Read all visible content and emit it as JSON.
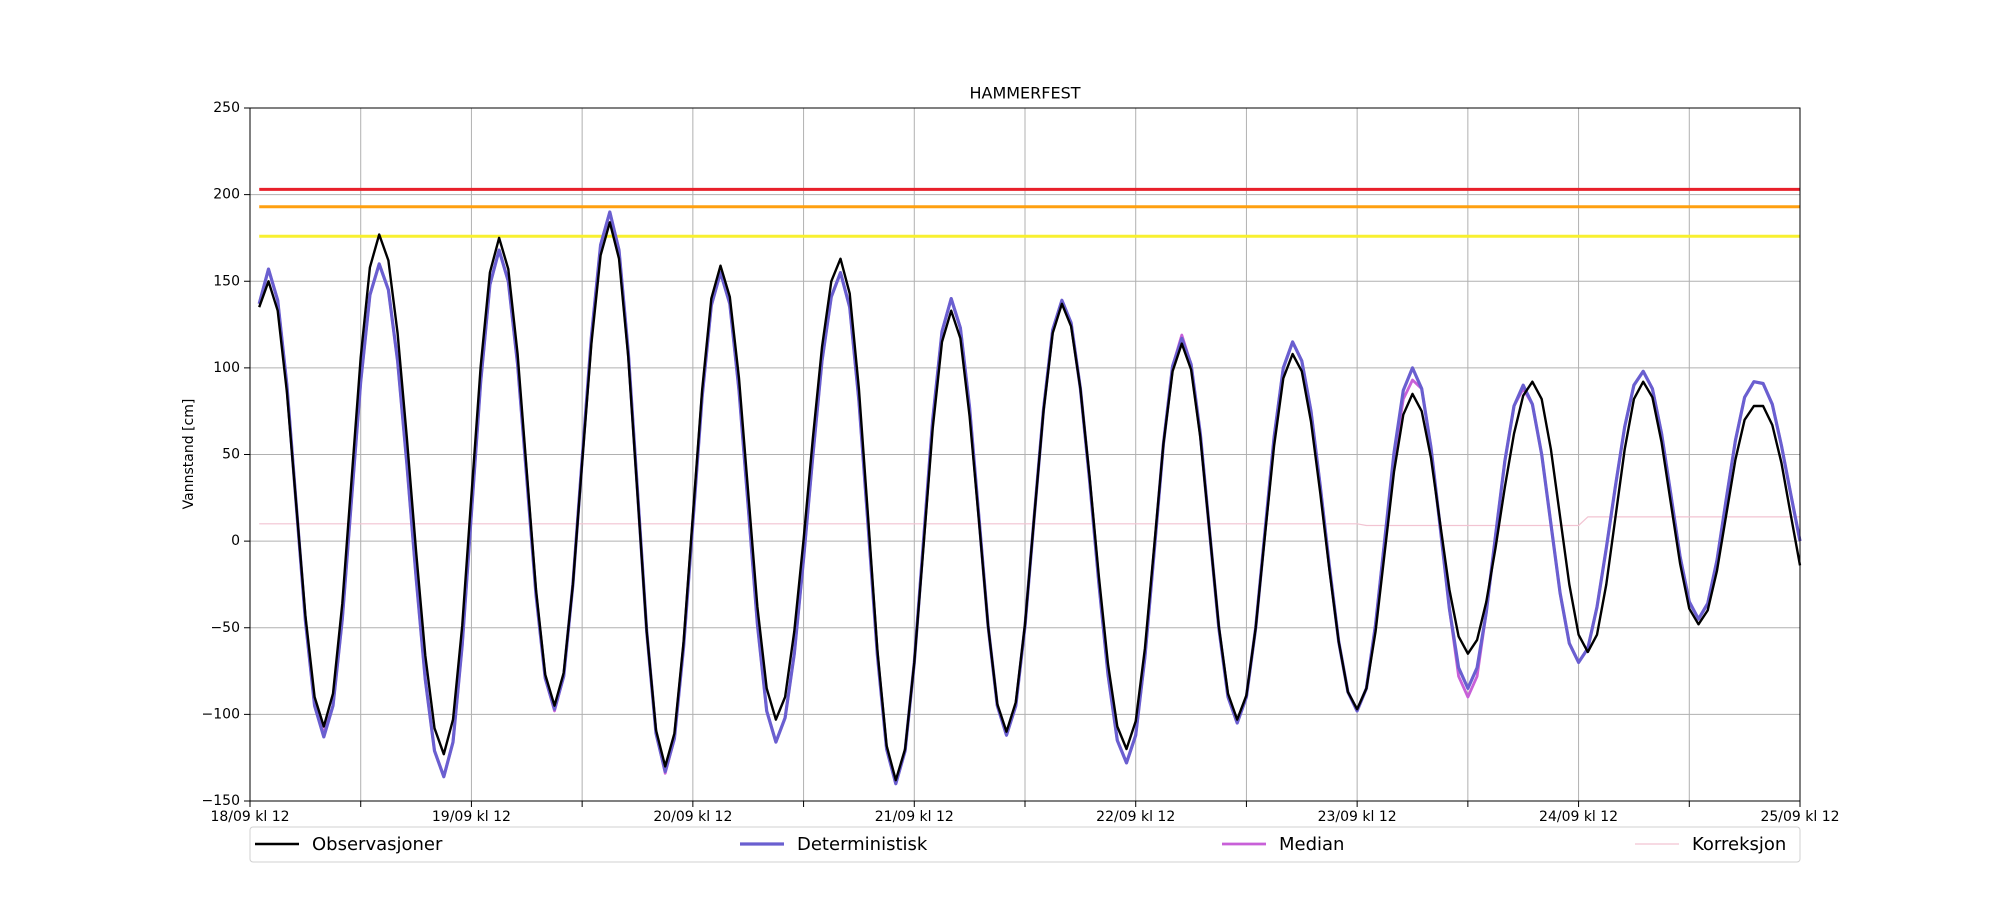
{
  "chart_data": {
    "type": "line",
    "title": "HAMMERFEST",
    "y_label": "Vannstand [cm]",
    "x": [
      1,
      2,
      3,
      4,
      5,
      6,
      7,
      8,
      9,
      10,
      11,
      12,
      13,
      14,
      15,
      16,
      17,
      18,
      19,
      20,
      21,
      22,
      23,
      24,
      25,
      26,
      27,
      28,
      29,
      30,
      31,
      32,
      33,
      34,
      35,
      36,
      37,
      38,
      39,
      40,
      41,
      42,
      43,
      44,
      45,
      46,
      47,
      48,
      49,
      50,
      51,
      52,
      53,
      54,
      55,
      56,
      57,
      58,
      59,
      60,
      61,
      62,
      63,
      64,
      65,
      66,
      67,
      68,
      69,
      70,
      71,
      72,
      73,
      74,
      75,
      76,
      77,
      78,
      79,
      80,
      81,
      82,
      83,
      84,
      85,
      86,
      87,
      88,
      89,
      90,
      91,
      92,
      93,
      94,
      95,
      96,
      97,
      98,
      99,
      100,
      101,
      102,
      103,
      104,
      105,
      106,
      107,
      108,
      109,
      110,
      111,
      112,
      113,
      114,
      115,
      116,
      117,
      118,
      119,
      120,
      121,
      122,
      123,
      124,
      125,
      126,
      127,
      128,
      129,
      130,
      131,
      132,
      133,
      134,
      135,
      136,
      137,
      138,
      139,
      140,
      141,
      142,
      143,
      144,
      145,
      146,
      147,
      148,
      149,
      150,
      151,
      152,
      153,
      154,
      155,
      156,
      157,
      158,
      159,
      160,
      161,
      162,
      163,
      164,
      165,
      166,
      167,
      168
    ],
    "series": [
      {
        "name": "Observasjoner",
        "color": "#000000",
        "values": [
          135,
          150,
          133,
          86,
          22,
          -43,
          -90,
          -107,
          -88,
          -36,
          35,
          106,
          158,
          177,
          162,
          120,
          60,
          -6,
          -66,
          -108,
          -123,
          -103,
          -49,
          26,
          101,
          155,
          175,
          157,
          108,
          40,
          -28,
          -77,
          -95,
          -76,
          -25,
          45,
          114,
          165,
          184,
          163,
          106,
          27,
          -52,
          -109,
          -130,
          -111,
          -58,
          15,
          87,
          140,
          159,
          141,
          94,
          28,
          -38,
          -85,
          -103,
          -90,
          -52,
          1,
          59,
          112,
          150,
          163,
          143,
          88,
          13,
          -63,
          -118,
          -138,
          -120,
          -70,
          -3,
          65,
          115,
          133,
          117,
          72,
          12,
          -49,
          -94,
          -110,
          -93,
          -48,
          14,
          75,
          120,
          137,
          124,
          88,
          37,
          -20,
          -71,
          -107,
          -120,
          -104,
          -62,
          -3,
          56,
          98,
          114,
          99,
          60,
          6,
          -49,
          -88,
          -103,
          -89,
          -50,
          3,
          55,
          94,
          108,
          98,
          69,
          28,
          -17,
          -58,
          -87,
          -97,
          -85,
          -52,
          -6,
          40,
          73,
          85,
          75,
          48,
          10,
          -28,
          -55,
          -65,
          -57,
          -35,
          -4,
          31,
          62,
          84,
          92,
          82,
          53,
          14,
          -25,
          -54,
          -64,
          -54,
          -25,
          14,
          53,
          82,
          92,
          83,
          57,
          22,
          -13,
          -39,
          -48,
          -40,
          -17,
          15,
          47,
          70,
          78,
          78,
          67,
          45,
          15,
          -14
        ]
      },
      {
        "name": "Deterministisk",
        "color": "#6a5fd0",
        "values": [
          137,
          157,
          139,
          90,
          22,
          -46,
          -95,
          -113,
          -95,
          -45,
          24,
          92,
          142,
          160,
          145,
          104,
          45,
          -21,
          -80,
          -121,
          -136,
          -116,
          -60,
          16,
          92,
          148,
          168,
          150,
          102,
          36,
          -31,
          -79,
          -97,
          -78,
          -25,
          47,
          118,
          171,
          190,
          168,
          109,
          29,
          -52,
          -111,
          -133,
          -114,
          -61,
          11,
          83,
          136,
          155,
          137,
          87,
          20,
          -48,
          -98,
          -116,
          -102,
          -65,
          -10,
          49,
          104,
          141,
          155,
          135,
          81,
          8,
          -66,
          -120,
          -140,
          -121,
          -70,
          0,
          70,
          121,
          140,
          123,
          77,
          14,
          -49,
          -95,
          -112,
          -95,
          -49,
          14,
          76,
          122,
          139,
          126,
          88,
          35,
          -24,
          -77,
          -115,
          -128,
          -112,
          -67,
          -6,
          56,
          101,
          117,
          102,
          62,
          6,
          -50,
          -90,
          -105,
          -90,
          -50,
          5,
          60,
          100,
          115,
          104,
          75,
          32,
          -15,
          -58,
          -87,
          -98,
          -85,
          -48,
          1,
          51,
          87,
          100,
          88,
          54,
          8,
          -39,
          -73,
          -85,
          -73,
          -41,
          3,
          46,
          78,
          90,
          79,
          50,
          10,
          -30,
          -59,
          -70,
          -62,
          -38,
          -4,
          32,
          66,
          90,
          98,
          88,
          62,
          27,
          -9,
          -35,
          -45,
          -36,
          -11,
          24,
          58,
          83,
          92,
          91,
          79,
          55,
          27,
          0
        ]
      },
      {
        "name": "Median",
        "color": "#c860d8",
        "values": [
          137,
          157,
          139,
          90,
          22,
          -46,
          -95,
          -111,
          -95,
          -45,
          24,
          92,
          142,
          160,
          145,
          104,
          45,
          -21,
          -80,
          -121,
          -136,
          -116,
          -60,
          16,
          92,
          148,
          168,
          150,
          102,
          36,
          -31,
          -79,
          -98,
          -78,
          -25,
          47,
          118,
          171,
          190,
          168,
          109,
          29,
          -52,
          -110,
          -134,
          -114,
          -61,
          11,
          83,
          136,
          155,
          137,
          87,
          20,
          -48,
          -98,
          -116,
          -102,
          -65,
          -10,
          49,
          104,
          141,
          155,
          135,
          81,
          8,
          -66,
          -120,
          -140,
          -121,
          -70,
          0,
          70,
          121,
          140,
          123,
          77,
          14,
          -49,
          -95,
          -112,
          -95,
          -49,
          14,
          76,
          122,
          139,
          126,
          88,
          35,
          -24,
          -77,
          -115,
          -128,
          -112,
          -67,
          -6,
          56,
          101,
          119,
          102,
          62,
          6,
          -50,
          -90,
          -105,
          -90,
          -50,
          5,
          60,
          100,
          115,
          104,
          75,
          32,
          -15,
          -58,
          -87,
          -98,
          -85,
          -48,
          1,
          48,
          82,
          93,
          88,
          54,
          8,
          -39,
          -78,
          -90,
          -78,
          -41,
          3,
          46,
          78,
          88,
          79,
          50,
          10,
          -30,
          -59,
          -70,
          -62,
          -38,
          -4,
          32,
          66,
          90,
          98,
          88,
          62,
          27,
          -9,
          -35,
          -45,
          -36,
          -11,
          24,
          58,
          83,
          92,
          91,
          79,
          55,
          27,
          0
        ]
      },
      {
        "name": "Korreksjon",
        "color": "#f2c4d2",
        "values": [
          10,
          10,
          10,
          10,
          10,
          10,
          10,
          10,
          10,
          10,
          10,
          10,
          10,
          10,
          10,
          10,
          10,
          10,
          10,
          10,
          10,
          10,
          10,
          10,
          10,
          10,
          10,
          10,
          10,
          10,
          10,
          10,
          10,
          10,
          10,
          10,
          10,
          10,
          10,
          10,
          10,
          10,
          10,
          10,
          10,
          10,
          10,
          10,
          10,
          10,
          10,
          10,
          10,
          10,
          10,
          10,
          10,
          10,
          10,
          10,
          10,
          10,
          10,
          10,
          10,
          10,
          10,
          10,
          10,
          10,
          10,
          10,
          10,
          10,
          10,
          10,
          10,
          10,
          10,
          10,
          10,
          10,
          10,
          10,
          10,
          10,
          10,
          10,
          10,
          10,
          10,
          10,
          10,
          10,
          10,
          10,
          10,
          10,
          10,
          10,
          10,
          10,
          10,
          10,
          10,
          10,
          10,
          10,
          10,
          10,
          10,
          10,
          10,
          10,
          10,
          10,
          10,
          10,
          10,
          10,
          9,
          9,
          9,
          9,
          9,
          9,
          9,
          9,
          9,
          9,
          9,
          9,
          9,
          9,
          9,
          9,
          9,
          9,
          9,
          9,
          9,
          9,
          9,
          9,
          14,
          14,
          14,
          14,
          14,
          14,
          14,
          14,
          14,
          14,
          14,
          14,
          14,
          14,
          14,
          14,
          14,
          14,
          14,
          14,
          14,
          14,
          14,
          14
        ]
      }
    ],
    "hlines": [
      {
        "value": 203,
        "color": "#e8202a"
      },
      {
        "value": 193,
        "color": "#ffa010"
      },
      {
        "value": 176,
        "color": "#f8f030"
      }
    ],
    "xlim": [
      0,
      168
    ],
    "xticks": [
      {
        "value": 0,
        "label": "18/09 kl 12"
      },
      {
        "value": 24,
        "label": "19/09 kl 12"
      },
      {
        "value": 48,
        "label": "20/09 kl 12"
      },
      {
        "value": 72,
        "label": "21/09 kl 12"
      },
      {
        "value": 96,
        "label": "22/09 kl 12"
      },
      {
        "value": 120,
        "label": "23/09 kl 12"
      },
      {
        "value": 144,
        "label": "24/09 kl 12"
      },
      {
        "value": 168,
        "label": "25/09 kl 12"
      }
    ],
    "xticks_minor": [
      12,
      36,
      60,
      84,
      108,
      132,
      156
    ],
    "ylim": [
      -150,
      250
    ],
    "yticks": [
      {
        "value": -150,
        "label": "−150"
      },
      {
        "value": -100,
        "label": "−100"
      },
      {
        "value": -50,
        "label": "−50"
      },
      0,
      50,
      100,
      150,
      200,
      250
    ],
    "grid": true,
    "legend": "below"
  }
}
